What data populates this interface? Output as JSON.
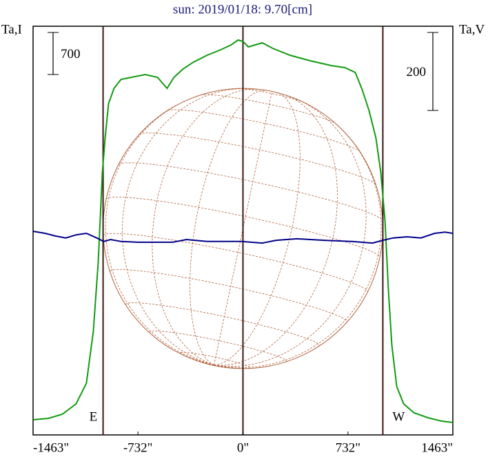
{
  "chart_data": {
    "type": "line",
    "title": "sun: 2019/01/18: 9.70[cm]",
    "y_label": "Ta,I",
    "y2_label": "Ta,V",
    "y_scale_bar": 700,
    "y2_scale_bar": 200,
    "xlim": [
      -1463,
      1463
    ],
    "ylim": [
      0,
      6800
    ],
    "y2lim": [
      -524,
      524
    ],
    "xticks": [
      {
        "value": -1463,
        "label": "-1463\""
      },
      {
        "value": -732,
        "label": "-732\""
      },
      {
        "value": 0,
        "label": "0\""
      },
      {
        "value": 732,
        "label": "732\""
      },
      {
        "value": 1463,
        "label": "1463\""
      }
    ],
    "limbs": [
      {
        "x": -975,
        "label": "E"
      },
      {
        "x": 975,
        "label": "W"
      }
    ],
    "series": [
      {
        "name": "Ta,I",
        "color": "#119a11",
        "x": [
          -1461,
          -1355,
          -1259,
          -1163,
          -1091,
          -1043,
          -1009,
          -980,
          -961,
          -937,
          -899,
          -850,
          -778,
          -682,
          -596,
          -529,
          -481,
          -418,
          -346,
          -250,
          -154,
          -82,
          -34,
          0,
          38,
          86,
          135,
          207,
          327,
          471,
          615,
          711,
          783,
          831,
          879,
          927,
          961,
          990,
          1014,
          1038,
          1072,
          1120,
          1192,
          1288,
          1384,
          1463
        ],
        "values": [
          253,
          276,
          345,
          517,
          861,
          1723,
          2872,
          4365,
          4939,
          5513,
          5766,
          5915,
          5950,
          5996,
          5950,
          5766,
          5950,
          6088,
          6202,
          6317,
          6409,
          6490,
          6570,
          6547,
          6455,
          6490,
          6524,
          6432,
          6317,
          6225,
          6145,
          6111,
          6030,
          5743,
          5398,
          4939,
          4365,
          3561,
          2412,
          1493,
          804,
          517,
          368,
          287,
          230,
          207
        ]
      },
      {
        "name": "Ta,V",
        "color": "#000088",
        "axis": "y2",
        "x": [
          -1461,
          -1379,
          -1307,
          -1235,
          -1163,
          -1091,
          -1019,
          -971,
          -923,
          -850,
          -730,
          -490,
          -394,
          -250,
          -10,
          135,
          231,
          375,
          567,
          759,
          903,
          975,
          1047,
          1144,
          1240,
          1336,
          1408,
          1463
        ],
        "values": [
          -2,
          -7,
          -14,
          -19,
          -11,
          -7,
          -19,
          -28,
          -23,
          -28,
          -30,
          -30,
          -23,
          -28,
          -28,
          -32,
          -25,
          -21,
          -25,
          -28,
          -32,
          -25,
          -19,
          -16,
          -19,
          -7,
          -4,
          -7
        ]
      }
    ]
  }
}
